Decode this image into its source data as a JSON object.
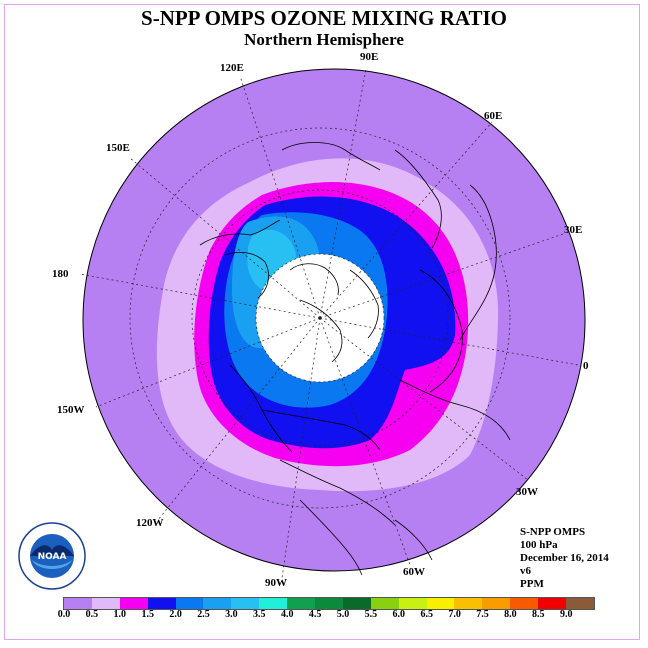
{
  "title": "S-NPP OMPS OZONE MIXING RATIO",
  "subtitle": "Northern Hemisphere",
  "lon_labels": [
    "90E",
    "60E",
    "30E",
    "0",
    "30W",
    "60W",
    "90W",
    "120W",
    "150W",
    "180",
    "150E",
    "120E"
  ],
  "info": {
    "instrument": "S-NPP OMPS",
    "level": "100 hPa",
    "date": "December 16, 2014",
    "version": "v6",
    "units": "PPM"
  },
  "logo": {
    "text": "NOAA"
  },
  "colorbar": {
    "ticks": [
      "0.0",
      "0.5",
      "1.0",
      "1.5",
      "2.0",
      "2.5",
      "3.0",
      "3.5",
      "4.0",
      "4.5",
      "5.0",
      "5.5",
      "6.0",
      "6.5",
      "7.0",
      "7.5",
      "8.0",
      "8.5",
      "9.0"
    ],
    "colors": [
      "#b67ff2",
      "#e1b8f8",
      "#f500f0",
      "#1010f0",
      "#0a78f0",
      "#1aa0f0",
      "#28c0f2",
      "#20f0d8",
      "#10a050",
      "#0a8a3a",
      "#0a6a2a",
      "#8ad010",
      "#c8f010",
      "#f8f000",
      "#f8c000",
      "#f89c00",
      "#f85a00",
      "#f00000",
      "#8a5a3a"
    ]
  }
}
